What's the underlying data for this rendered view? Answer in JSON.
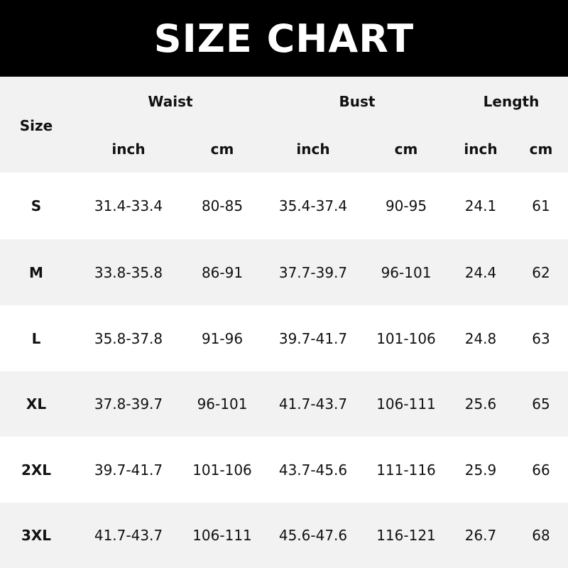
{
  "title": "SIZE CHART",
  "header": {
    "size": "Size",
    "groups": [
      "Waist",
      "Bust",
      "Length"
    ],
    "units": [
      "inch",
      "cm",
      "inch",
      "cm",
      "inch",
      "cm"
    ]
  },
  "colors": {
    "banner": "#000000",
    "stripe": "#f2f2f2"
  },
  "rows": [
    {
      "size": "S",
      "values": [
        "31.4-33.4",
        "80-85",
        "35.4-37.4",
        "90-95",
        "24.1",
        "61"
      ]
    },
    {
      "size": "M",
      "values": [
        "33.8-35.8",
        "86-91",
        "37.7-39.7",
        "96-101",
        "24.4",
        "62"
      ]
    },
    {
      "size": "L",
      "values": [
        "35.8-37.8",
        "91-96",
        "39.7-41.7",
        "101-106",
        "24.8",
        "63"
      ]
    },
    {
      "size": "XL",
      "values": [
        "37.8-39.7",
        "96-101",
        "41.7-43.7",
        "106-111",
        "25.6",
        "65"
      ]
    },
    {
      "size": "2XL",
      "values": [
        "39.7-41.7",
        "101-106",
        "43.7-45.6",
        "111-116",
        "25.9",
        "66"
      ]
    },
    {
      "size": "3XL",
      "values": [
        "41.7-43.7",
        "106-111",
        "45.6-47.6",
        "116-121",
        "26.7",
        "68"
      ]
    }
  ]
}
